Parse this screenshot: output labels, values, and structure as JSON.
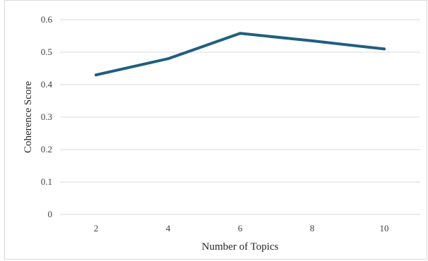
{
  "chart_data": {
    "type": "line",
    "xlabel": "Number of Topics",
    "ylabel": "Coherence Score",
    "x": [
      2,
      4,
      6,
      8,
      10
    ],
    "series": [
      {
        "values": [
          0.43,
          0.48,
          0.558,
          0.535,
          0.51
        ]
      }
    ],
    "ylim": [
      0,
      0.6
    ],
    "yticks": [
      "0",
      "0.1",
      "0.2",
      "0.3",
      "0.4",
      "0.5",
      "0.6"
    ],
    "xticks": [
      "2",
      "4",
      "6",
      "8",
      "10"
    ],
    "grid": "horizontal",
    "legend": "none",
    "colors": {
      "line": "#1f5f7f",
      "grid": "#d9d9d9"
    }
  }
}
